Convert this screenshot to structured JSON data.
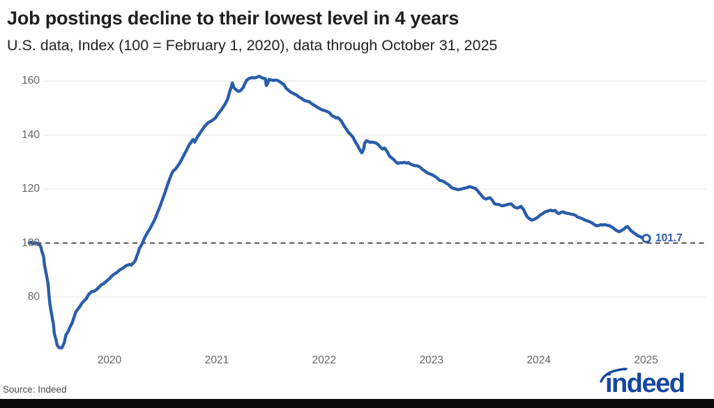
{
  "header": {
    "title": "Job postings decline to their lowest level in 4 years",
    "subtitle": "U.S. data, Index (100 = February 1, 2020), data through October 31, 2025"
  },
  "source_label": "Source: Indeed",
  "logo": {
    "text": "indeed"
  },
  "colors": {
    "line": "#2a5caa",
    "endpoint_label": "#2a5caa",
    "grid": "#e4e4e4",
    "reference_line": "#1a1a1a",
    "axis_text": "#636363",
    "logo_blue": "#1546a0",
    "footer_bar": "#0b0b0b"
  },
  "chart_data": {
    "type": "line",
    "title": "Job postings decline to their lowest level in 4 years",
    "subtitle": "U.S. data, Index (100 = February 1, 2020), data through October 31, 2025",
    "xlabel": "",
    "ylabel": "Index (100 = February 1, 2020)",
    "x_axis": {
      "unit": "months since Feb 1, 2020",
      "range": [
        0,
        69
      ],
      "ticks": [
        {
          "label": "2020",
          "t": 8.97
        },
        {
          "label": "2021",
          "t": 20.97
        },
        {
          "label": "2022",
          "t": 32.97
        },
        {
          "label": "2023",
          "t": 44.97
        },
        {
          "label": "2024",
          "t": 56.97
        },
        {
          "label": "2025",
          "t": 68.97
        }
      ]
    },
    "y_axis": {
      "ticks": [
        80,
        100,
        120,
        140,
        160
      ],
      "gridlines": [
        80,
        120,
        140,
        160
      ],
      "reference_line": 100,
      "range_shown": [
        58,
        165
      ],
      "grid": true
    },
    "legend": {
      "shown": false
    },
    "end_label": {
      "value": 101.7,
      "text": "101.7"
    },
    "series": [
      {
        "name": "U.S. job postings index",
        "points": [
          [
            0,
            100
          ],
          [
            0.2,
            100.3
          ],
          [
            0.4,
            99.7
          ],
          [
            0.6,
            100.1
          ],
          [
            0.9,
            99.9
          ],
          [
            1.1,
            99.6
          ],
          [
            1.3,
            98.5
          ],
          [
            1.4,
            97
          ],
          [
            1.6,
            95
          ],
          [
            1.7,
            92
          ],
          [
            1.9,
            88.5
          ],
          [
            2.1,
            85
          ],
          [
            2.2,
            81
          ],
          [
            2.3,
            77.5
          ],
          [
            2.5,
            73.5
          ],
          [
            2.7,
            70
          ],
          [
            2.8,
            66.5
          ],
          [
            3,
            64
          ],
          [
            3.1,
            62.3
          ],
          [
            3.3,
            61.3
          ],
          [
            3.6,
            61.1
          ],
          [
            3.7,
            61.6
          ],
          [
            3.9,
            63
          ],
          [
            4.1,
            66
          ],
          [
            4.4,
            67.5
          ],
          [
            4.5,
            68.5
          ],
          [
            4.8,
            70.5
          ],
          [
            5,
            72.5
          ],
          [
            5.2,
            74.5
          ],
          [
            5.5,
            75.8
          ],
          [
            5.7,
            76.7
          ],
          [
            5.9,
            77.8
          ],
          [
            6.2,
            78.8
          ],
          [
            6.4,
            79.5
          ],
          [
            6.6,
            80.8
          ],
          [
            6.9,
            81.8
          ],
          [
            7.1,
            82.1
          ],
          [
            7.3,
            82.2
          ],
          [
            7.6,
            83
          ],
          [
            7.8,
            83.6
          ],
          [
            8,
            84.4
          ],
          [
            8.3,
            85
          ],
          [
            8.5,
            85.5
          ],
          [
            8.7,
            86.1
          ],
          [
            9,
            86.9
          ],
          [
            9.2,
            87.7
          ],
          [
            9.4,
            88.3
          ],
          [
            9.7,
            88.9
          ],
          [
            9.9,
            89.4
          ],
          [
            10.1,
            90
          ],
          [
            10.4,
            90.6
          ],
          [
            10.6,
            91
          ],
          [
            10.8,
            91.6
          ],
          [
            11.1,
            91.9
          ],
          [
            11.2,
            92.1
          ],
          [
            11.4,
            91.8
          ],
          [
            11.5,
            92.2
          ],
          [
            11.7,
            92.8
          ],
          [
            11.9,
            93.8
          ],
          [
            12,
            95
          ],
          [
            12.2,
            96.7
          ],
          [
            12.3,
            98
          ],
          [
            12.5,
            99
          ],
          [
            12.7,
            100.3
          ],
          [
            12.9,
            102
          ],
          [
            13.2,
            103.8
          ],
          [
            13.4,
            104.8
          ],
          [
            14,
            108.5
          ],
          [
            14.6,
            113.5
          ],
          [
            15.1,
            118
          ],
          [
            15.5,
            122
          ],
          [
            15.9,
            125.5
          ],
          [
            16.1,
            126.8
          ],
          [
            16.3,
            127.2
          ],
          [
            16.8,
            129.5
          ],
          [
            17.2,
            132
          ],
          [
            17.6,
            134.5
          ],
          [
            17.9,
            136.5
          ],
          [
            18.2,
            137.8
          ],
          [
            18.3,
            138.4
          ],
          [
            18.5,
            137.4
          ],
          [
            18.8,
            139.3
          ],
          [
            19.2,
            141.3
          ],
          [
            19.6,
            143.2
          ],
          [
            20,
            144.6
          ],
          [
            20.4,
            145.3
          ],
          [
            20.8,
            146.3
          ],
          [
            21.1,
            147.8
          ],
          [
            21.5,
            149.5
          ],
          [
            21.9,
            151.5
          ],
          [
            22.2,
            153.5
          ],
          [
            22.4,
            156
          ],
          [
            22.6,
            158
          ],
          [
            22.7,
            159.3
          ],
          [
            22.9,
            157.5
          ],
          [
            23.2,
            156.6
          ],
          [
            23.4,
            156.2
          ],
          [
            23.6,
            156.4
          ],
          [
            23.9,
            157.5
          ],
          [
            24.1,
            159
          ],
          [
            24.3,
            160.3
          ],
          [
            24.6,
            161
          ],
          [
            24.9,
            161.3
          ],
          [
            25.2,
            161.2
          ],
          [
            25.5,
            161.5
          ],
          [
            25.7,
            161.8
          ],
          [
            26,
            161.3
          ],
          [
            26.2,
            161
          ],
          [
            26.4,
            160.9
          ],
          [
            26.5,
            158.4
          ],
          [
            26.7,
            159.5
          ],
          [
            26.8,
            160.6
          ],
          [
            27.1,
            160.4
          ],
          [
            27.3,
            160.2
          ],
          [
            27.5,
            160.4
          ],
          [
            27.8,
            160.2
          ],
          [
            28,
            159.8
          ],
          [
            28.2,
            159.3
          ],
          [
            28.5,
            158.6
          ],
          [
            28.7,
            157.4
          ],
          [
            29,
            156.6
          ],
          [
            29.2,
            156
          ],
          [
            29.4,
            155.6
          ],
          [
            29.6,
            155.3
          ],
          [
            29.9,
            154.8
          ],
          [
            30.1,
            154.2
          ],
          [
            30.4,
            153.7
          ],
          [
            30.6,
            153.2
          ],
          [
            30.8,
            152.8
          ],
          [
            31.1,
            152.5
          ],
          [
            31.3,
            152.4
          ],
          [
            31.5,
            151.8
          ],
          [
            31.8,
            151.2
          ],
          [
            32,
            150.8
          ],
          [
            32.2,
            150.3
          ],
          [
            32.5,
            149.8
          ],
          [
            32.7,
            149.4
          ],
          [
            32.9,
            149.2
          ],
          [
            33.2,
            148.9
          ],
          [
            33.4,
            148.6
          ],
          [
            33.6,
            148.2
          ],
          [
            33.8,
            147.3
          ],
          [
            34.1,
            146.8
          ],
          [
            34.3,
            146.3
          ],
          [
            34.5,
            146.5
          ],
          [
            34.8,
            145.6
          ],
          [
            35,
            144.6
          ],
          [
            35.2,
            143.4
          ],
          [
            35.5,
            142
          ],
          [
            35.7,
            140.9
          ],
          [
            35.9,
            140.3
          ],
          [
            36.2,
            139.2
          ],
          [
            36.4,
            137.8
          ],
          [
            36.7,
            136.2
          ],
          [
            36.9,
            134.9
          ],
          [
            37.1,
            133.9
          ],
          [
            37.2,
            133.4
          ],
          [
            37.4,
            135
          ],
          [
            37.5,
            137
          ],
          [
            37.7,
            137.9
          ],
          [
            37.9,
            137.6
          ],
          [
            38.1,
            137.3
          ],
          [
            38.4,
            137.4
          ],
          [
            38.6,
            137.2
          ],
          [
            38.8,
            137
          ],
          [
            39.1,
            136.2
          ],
          [
            39.3,
            135.4
          ],
          [
            39.5,
            134.8
          ],
          [
            39.7,
            135.2
          ],
          [
            39.8,
            134.9
          ],
          [
            40.1,
            133.4
          ],
          [
            40.3,
            132.1
          ],
          [
            40.5,
            131.6
          ],
          [
            40.8,
            130.8
          ],
          [
            41,
            130
          ],
          [
            41.2,
            129.5
          ],
          [
            41.5,
            129.8
          ],
          [
            41.7,
            129.7
          ],
          [
            41.9,
            129.9
          ],
          [
            42.2,
            129.6
          ],
          [
            42.4,
            129.8
          ],
          [
            42.6,
            129.3
          ],
          [
            42.9,
            128.9
          ],
          [
            43.1,
            128.7
          ],
          [
            43.4,
            128.6
          ],
          [
            43.6,
            128.3
          ],
          [
            43.8,
            127.8
          ],
          [
            44,
            127.2
          ],
          [
            44.3,
            126.5
          ],
          [
            44.5,
            126
          ],
          [
            44.8,
            125.6
          ],
          [
            45,
            125.4
          ],
          [
            45.2,
            125
          ],
          [
            45.5,
            124.4
          ],
          [
            45.7,
            123.8
          ],
          [
            45.9,
            123.2
          ],
          [
            46.2,
            123
          ],
          [
            46.4,
            122.7
          ],
          [
            46.6,
            122.2
          ],
          [
            46.9,
            121.6
          ],
          [
            47.1,
            120.9
          ],
          [
            47.3,
            120.4
          ],
          [
            47.6,
            120.1
          ],
          [
            47.8,
            119.9
          ],
          [
            48,
            119.8
          ],
          [
            48.3,
            120
          ],
          [
            48.5,
            120.2
          ],
          [
            48.7,
            120.3
          ],
          [
            49,
            120.6
          ],
          [
            49.2,
            120.9
          ],
          [
            49.4,
            120.8
          ],
          [
            49.7,
            120.4
          ],
          [
            49.9,
            120.2
          ],
          [
            50.1,
            119.5
          ],
          [
            50.4,
            118.3
          ],
          [
            50.6,
            117.5
          ],
          [
            50.8,
            116.7
          ],
          [
            51.1,
            116.3
          ],
          [
            51.3,
            116.6
          ],
          [
            51.5,
            116.8
          ],
          [
            51.8,
            115.8
          ],
          [
            52,
            114.6
          ],
          [
            52.2,
            114.4
          ],
          [
            52.5,
            114.3
          ],
          [
            52.7,
            114
          ],
          [
            52.9,
            113.8
          ],
          [
            53.2,
            114
          ],
          [
            53.4,
            114.2
          ],
          [
            53.6,
            114.4
          ],
          [
            53.9,
            114.5
          ],
          [
            54.1,
            113.8
          ],
          [
            54.3,
            113.2
          ],
          [
            54.6,
            113
          ],
          [
            54.8,
            113.3
          ],
          [
            55,
            113.6
          ],
          [
            55.3,
            112.2
          ],
          [
            55.5,
            110.8
          ],
          [
            55.7,
            109.6
          ],
          [
            56,
            108.8
          ],
          [
            56.2,
            108.5
          ],
          [
            56.4,
            108.7
          ],
          [
            56.7,
            109.2
          ],
          [
            56.9,
            109.7
          ],
          [
            57.1,
            110.3
          ],
          [
            57.4,
            110.9
          ],
          [
            57.6,
            111.4
          ],
          [
            57.8,
            111.7
          ],
          [
            58.1,
            112
          ],
          [
            58.3,
            112.2
          ],
          [
            58.5,
            111.9
          ],
          [
            58.8,
            112.1
          ],
          [
            59,
            111.3
          ],
          [
            59.2,
            110.9
          ],
          [
            59.5,
            111.4
          ],
          [
            59.7,
            111.6
          ],
          [
            59.9,
            111.2
          ],
          [
            60.2,
            111
          ],
          [
            60.4,
            110.9
          ],
          [
            60.6,
            110.7
          ],
          [
            60.9,
            110.5
          ],
          [
            61.1,
            110.2
          ],
          [
            61.3,
            109.7
          ],
          [
            61.6,
            109.3
          ],
          [
            61.8,
            109.1
          ],
          [
            62,
            108.7
          ],
          [
            62.3,
            108.3
          ],
          [
            62.5,
            108.1
          ],
          [
            62.8,
            107.7
          ],
          [
            63,
            107.3
          ],
          [
            63.2,
            106.8
          ],
          [
            63.4,
            106.4
          ],
          [
            63.7,
            106.5
          ],
          [
            63.9,
            106.8
          ],
          [
            64.1,
            106.7
          ],
          [
            64.4,
            106.8
          ],
          [
            64.6,
            106.6
          ],
          [
            64.9,
            106.4
          ],
          [
            65.1,
            106
          ],
          [
            65.3,
            105.6
          ],
          [
            65.5,
            105
          ],
          [
            65.8,
            104.4
          ],
          [
            66,
            104.2
          ],
          [
            66.2,
            104.6
          ],
          [
            66.5,
            105.2
          ],
          [
            66.7,
            105.9
          ],
          [
            66.9,
            106.1
          ],
          [
            67.1,
            105.3
          ],
          [
            67.3,
            104.5
          ],
          [
            67.6,
            103.8
          ],
          [
            67.8,
            103.3
          ],
          [
            68,
            102.8
          ],
          [
            68.3,
            102.4
          ],
          [
            68.5,
            102
          ],
          [
            68.8,
            101.8
          ],
          [
            69,
            101.7
          ]
        ]
      }
    ]
  }
}
